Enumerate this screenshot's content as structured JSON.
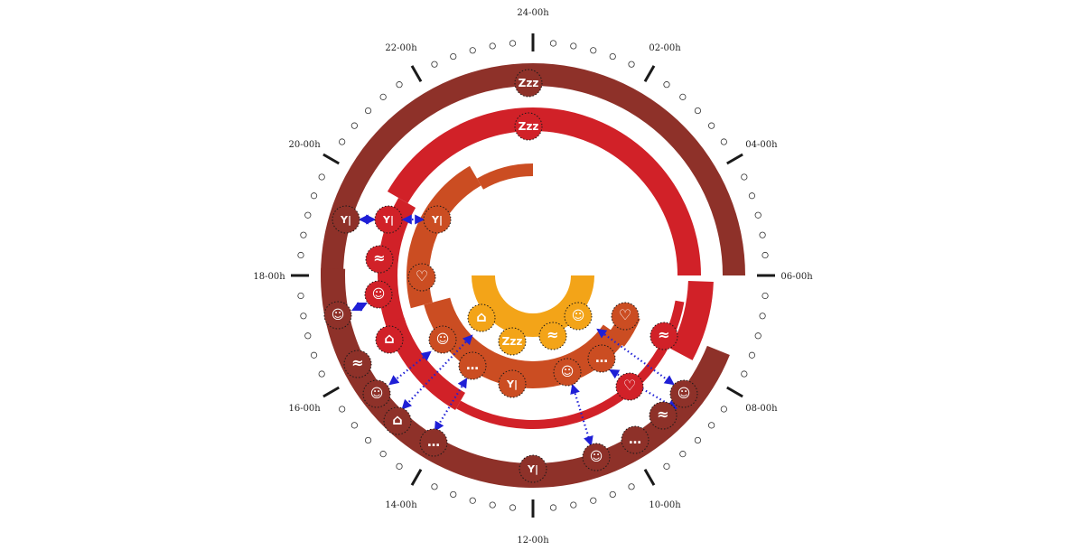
{
  "clock": {
    "hour_labels": [
      "24-00h",
      "02-00h",
      "04-00h",
      "06-00h",
      "08-00h",
      "10-00h",
      "12-00h",
      "14-00h",
      "16-00h",
      "18-00h",
      "20-00h",
      "22-00h"
    ],
    "tick_color": "#1a1a1a",
    "minor_dot_color": "#333333"
  },
  "rings": [
    {
      "name": "outer-ring",
      "color": "#8e3129"
    },
    {
      "name": "second-ring",
      "color": "#d12128"
    },
    {
      "name": "third-ring",
      "color": "#cb4d22"
    },
    {
      "name": "inner-ring",
      "color": "#f3a418"
    }
  ],
  "link_color": "#1f1fd6",
  "icons": {
    "sleep": "Zzz",
    "meal": "meal-icon",
    "leisure": "leisure-icon",
    "care": "care-icon",
    "bath": "bath-icon",
    "outdoor": "outdoor-icon",
    "social": "social-icon",
    "chat": "chat-icon"
  }
}
